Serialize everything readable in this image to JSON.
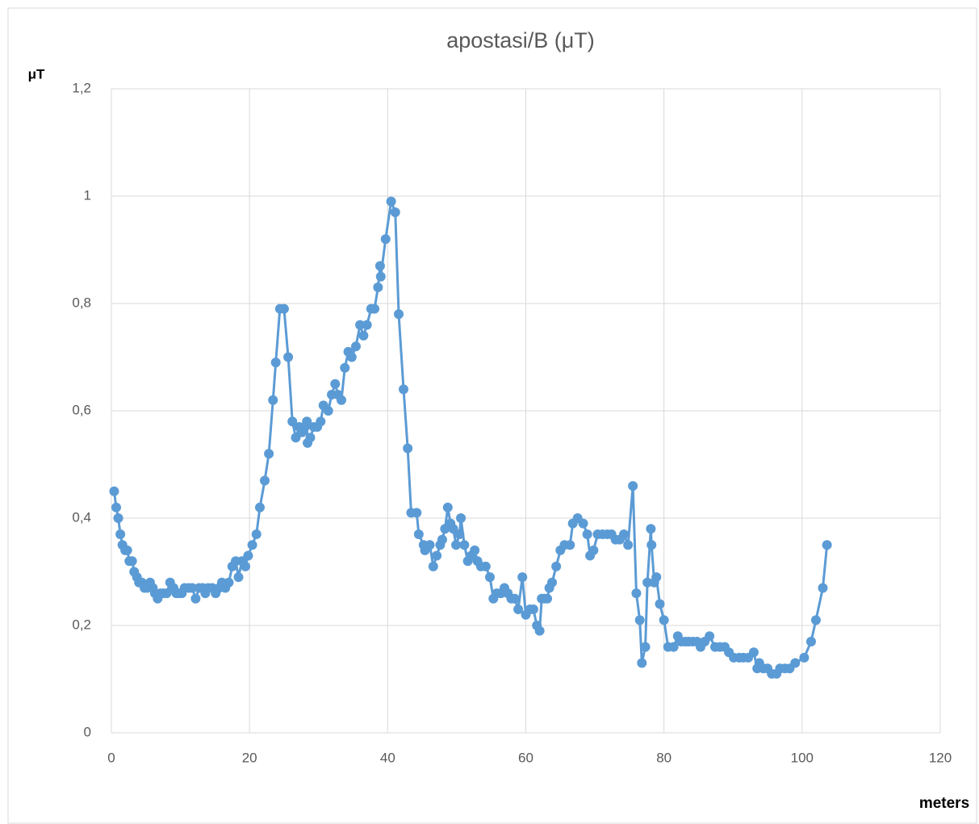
{
  "chart_data": {
    "type": "line",
    "title": "apostasi/B (μT)",
    "y_label": "μT",
    "x_label": "meters",
    "xlim": [
      0,
      120
    ],
    "xticks": [
      0,
      20,
      40,
      60,
      80,
      100,
      120
    ],
    "ylim": [
      0,
      1.2
    ],
    "yticks": [
      0,
      {
        "value": 0.2,
        "label": "0,2"
      },
      {
        "value": 0.4,
        "label": "0,4"
      },
      {
        "value": 0.6,
        "label": "0,6"
      },
      {
        "value": 0.8,
        "label": "0,8"
      },
      1,
      {
        "value": 1.2,
        "label": "1,2"
      }
    ],
    "grid": true,
    "series": [
      {
        "color": "#5b9bd5",
        "x": [
          0.4,
          0.7,
          1.0,
          1.3,
          1.6,
          2.0,
          2.3,
          2.6,
          3.0,
          3.3,
          3.7,
          4.0,
          4.4,
          4.8,
          5.2,
          5.6,
          6.0,
          6.3,
          6.7,
          7.1,
          7.5,
          8.0,
          8.5,
          9.0,
          9.4,
          9.8,
          10.2,
          10.6,
          11.2,
          11.7,
          12.2,
          12.7,
          13.2,
          13.6,
          14.0,
          14.6,
          15.1,
          15.6,
          16.0,
          16.5,
          17.0,
          17.5,
          18.0,
          18.4,
          18.9,
          19.4,
          19.8,
          20.4,
          21.0,
          21.5,
          22.2,
          22.8,
          23.4,
          23.8,
          24.4,
          25.0,
          25.6,
          26.2,
          26.7,
          27.2,
          27.6,
          28.0,
          28.3,
          28.4,
          28.8,
          29.3,
          29.8,
          30.3,
          30.7,
          31.4,
          31.9,
          32.4,
          32.8,
          33.3,
          33.8,
          34.3,
          34.8,
          35.4,
          36.0,
          36.5,
          37.0,
          37.6,
          38.1,
          38.6,
          38.9,
          39.0,
          39.7,
          40.5,
          41.1,
          41.6,
          42.3,
          42.9,
          43.4,
          44.2,
          44.5,
          45.2,
          45.4,
          46.1,
          46.6,
          47.1,
          47.6,
          47.9,
          48.3,
          48.7,
          49.1,
          49.5,
          49.9,
          50.4,
          50.6,
          51.1,
          51.6,
          52.1,
          52.6,
          53.0,
          53.5,
          54.2,
          54.8,
          55.3,
          55.8,
          56.4,
          56.9,
          57.4,
          57.9,
          58.4,
          58.9,
          59.5,
          60.0,
          60.6,
          61.1,
          61.6,
          62.0,
          62.3,
          62.7,
          63.1,
          63.4,
          63.8,
          64.4,
          65.0,
          65.6,
          66.4,
          66.8,
          67.5,
          68.3,
          68.9,
          69.3,
          69.8,
          70.4,
          71.1,
          71.8,
          72.4,
          73.0,
          73.6,
          74.2,
          74.8,
          75.5,
          76.0,
          76.5,
          76.8,
          77.3,
          77.6,
          78.1,
          78.2,
          78.6,
          78.9,
          79.4,
          80.0,
          80.6,
          81.4,
          82.0,
          82.5,
          83.1,
          83.6,
          84.2,
          84.8,
          85.3,
          85.9,
          86.6,
          87.4,
          88.1,
          88.8,
          89.4,
          90.1,
          90.9,
          91.5,
          92.2,
          93.0,
          93.5,
          93.8,
          94.4,
          95.0,
          95.6,
          96.3,
          96.8,
          97.5,
          98.2,
          99.0,
          100.3,
          101.3,
          102.0,
          103.0,
          103.6
        ],
        "values": [
          0.45,
          0.42,
          0.4,
          0.37,
          0.35,
          0.34,
          0.34,
          0.32,
          0.32,
          0.3,
          0.29,
          0.28,
          0.28,
          0.27,
          0.27,
          0.28,
          0.27,
          0.26,
          0.25,
          0.26,
          0.26,
          0.26,
          0.28,
          0.27,
          0.26,
          0.26,
          0.26,
          0.27,
          0.27,
          0.27,
          0.25,
          0.27,
          0.27,
          0.26,
          0.27,
          0.27,
          0.26,
          0.27,
          0.28,
          0.27,
          0.28,
          0.31,
          0.32,
          0.29,
          0.32,
          0.31,
          0.33,
          0.35,
          0.37,
          0.42,
          0.47,
          0.52,
          0.62,
          0.69,
          0.79,
          0.79,
          0.7,
          0.58,
          0.55,
          0.57,
          0.56,
          0.57,
          0.58,
          0.54,
          0.55,
          0.57,
          0.57,
          0.58,
          0.61,
          0.6,
          0.63,
          0.65,
          0.63,
          0.62,
          0.68,
          0.71,
          0.7,
          0.72,
          0.76,
          0.74,
          0.76,
          0.79,
          0.79,
          0.83,
          0.87,
          0.85,
          0.92,
          0.99,
          0.97,
          0.78,
          0.64,
          0.53,
          0.41,
          0.41,
          0.37,
          0.35,
          0.34,
          0.35,
          0.31,
          0.33,
          0.35,
          0.36,
          0.38,
          0.42,
          0.39,
          0.38,
          0.35,
          0.37,
          0.4,
          0.35,
          0.32,
          0.33,
          0.34,
          0.32,
          0.31,
          0.31,
          0.29,
          0.25,
          0.26,
          0.26,
          0.27,
          0.26,
          0.25,
          0.25,
          0.23,
          0.29,
          0.22,
          0.23,
          0.23,
          0.2,
          0.19,
          0.25,
          0.25,
          0.25,
          0.27,
          0.28,
          0.31,
          0.34,
          0.35,
          0.35,
          0.39,
          0.4,
          0.39,
          0.37,
          0.33,
          0.34,
          0.37,
          0.37,
          0.37,
          0.37,
          0.36,
          0.36,
          0.37,
          0.35,
          0.46,
          0.26,
          0.21,
          0.13,
          0.16,
          0.28,
          0.38,
          0.35,
          0.28,
          0.29,
          0.24,
          0.21,
          0.16,
          0.16,
          0.18,
          0.17,
          0.17,
          0.17,
          0.17,
          0.17,
          0.16,
          0.17,
          0.18,
          0.16,
          0.16,
          0.16,
          0.15,
          0.14,
          0.14,
          0.14,
          0.14,
          0.15,
          0.12,
          0.13,
          0.12,
          0.12,
          0.11,
          0.11,
          0.12,
          0.12,
          0.12,
          0.13,
          0.14,
          0.17,
          0.21,
          0.27,
          0.35
        ]
      }
    ]
  }
}
